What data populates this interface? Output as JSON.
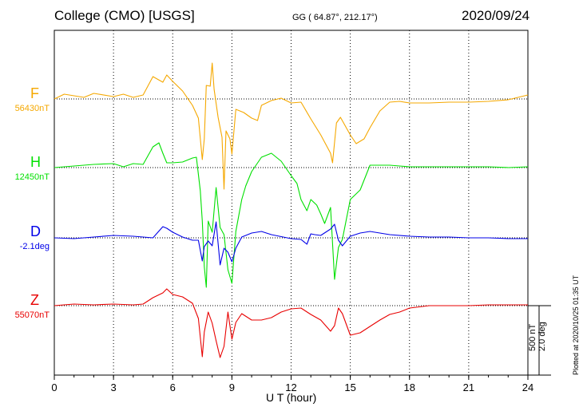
{
  "header": {
    "title": "College (CMO)  [USGS]",
    "coords": "GG ( 64.87°, 212.17°)",
    "date": "2020/09/24"
  },
  "footer": {
    "scale": "500 nT\n2.0 deg",
    "plotted": "Plotted at 2020/10/25 01:35 UT"
  },
  "chart_data": {
    "type": "line",
    "xlabel": "U T (hour)",
    "xlim": [
      0,
      24
    ],
    "xticks": [
      0,
      3,
      6,
      9,
      12,
      15,
      18,
      21,
      24
    ],
    "grid": true,
    "scale_bar": {
      "nT": 500,
      "deg": 2.0
    },
    "channels": [
      {
        "name": "F",
        "baseline": "56430nT",
        "color": "#f5a800",
        "points": [
          [
            0,
            0
          ],
          [
            0.5,
            6
          ],
          [
            1.5,
            2
          ],
          [
            2,
            7
          ],
          [
            3,
            3
          ],
          [
            3.5,
            6
          ],
          [
            4,
            2
          ],
          [
            4.5,
            5
          ],
          [
            5,
            28
          ],
          [
            5.5,
            21
          ],
          [
            5.7,
            30
          ],
          [
            6,
            22
          ],
          [
            6.5,
            10
          ],
          [
            7,
            -8
          ],
          [
            7.3,
            -24
          ],
          [
            7.5,
            -76
          ],
          [
            7.6,
            -50
          ],
          [
            7.7,
            17
          ],
          [
            7.9,
            16
          ],
          [
            8,
            45
          ],
          [
            8.1,
            12
          ],
          [
            8.3,
            -23
          ],
          [
            8.5,
            -48
          ],
          [
            8.6,
            -113
          ],
          [
            8.7,
            -40
          ],
          [
            8.9,
            -50
          ],
          [
            9,
            -69
          ],
          [
            9.2,
            -13
          ],
          [
            9.4,
            -15
          ],
          [
            9.6,
            -17
          ],
          [
            10,
            -24
          ],
          [
            10.3,
            -27
          ],
          [
            10.5,
            -8
          ],
          [
            11,
            -2
          ],
          [
            11.5,
            1
          ],
          [
            12,
            -5
          ],
          [
            12.5,
            -4
          ],
          [
            13,
            -25
          ],
          [
            13.5,
            -45
          ],
          [
            14,
            -68
          ],
          [
            14.1,
            -80
          ],
          [
            14.3,
            -30
          ],
          [
            14.5,
            -23
          ],
          [
            15,
            -45
          ],
          [
            15.3,
            -56
          ],
          [
            15.7,
            -50
          ],
          [
            16,
            -36
          ],
          [
            16.5,
            -15
          ],
          [
            17,
            -4
          ],
          [
            17.5,
            -3
          ],
          [
            18,
            -5
          ],
          [
            19,
            -5
          ],
          [
            20,
            -4
          ],
          [
            21,
            -4
          ],
          [
            22,
            -3
          ],
          [
            23,
            -1
          ],
          [
            24,
            5
          ]
        ]
      },
      {
        "name": "H",
        "baseline": "12450nT",
        "color": "#00e000",
        "points": [
          [
            0,
            0
          ],
          [
            1,
            2
          ],
          [
            2,
            4
          ],
          [
            3,
            5
          ],
          [
            3.5,
            1
          ],
          [
            4,
            5
          ],
          [
            4.5,
            4
          ],
          [
            5,
            26
          ],
          [
            5.3,
            31
          ],
          [
            5.5,
            18
          ],
          [
            5.7,
            6
          ],
          [
            6,
            6
          ],
          [
            6.5,
            7
          ],
          [
            7,
            12
          ],
          [
            7.2,
            13
          ],
          [
            7.4,
            -29
          ],
          [
            7.5,
            -67
          ],
          [
            7.6,
            -124
          ],
          [
            7.7,
            -150
          ],
          [
            7.8,
            -67
          ],
          [
            8,
            -81
          ],
          [
            8.2,
            -25
          ],
          [
            8.4,
            -75
          ],
          [
            8.6,
            -84
          ],
          [
            8.8,
            -128
          ],
          [
            9,
            -145
          ],
          [
            9.2,
            -80
          ],
          [
            9.5,
            -40
          ],
          [
            9.7,
            -23
          ],
          [
            10,
            -5
          ],
          [
            10.5,
            13
          ],
          [
            11,
            18
          ],
          [
            11.5,
            8
          ],
          [
            12,
            -10
          ],
          [
            12.3,
            -20
          ],
          [
            12.5,
            -40
          ],
          [
            12.8,
            -54
          ],
          [
            13,
            -40
          ],
          [
            13.3,
            -47
          ],
          [
            13.5,
            -58
          ],
          [
            13.7,
            -70
          ],
          [
            14,
            -50
          ],
          [
            14.2,
            -140
          ],
          [
            14.4,
            -100
          ],
          [
            14.6,
            -90
          ],
          [
            15,
            -40
          ],
          [
            15.5,
            -28
          ],
          [
            16,
            3
          ],
          [
            16.5,
            3
          ],
          [
            17,
            3
          ],
          [
            17.5,
            2
          ],
          [
            18,
            1
          ],
          [
            19,
            1
          ],
          [
            20,
            1
          ],
          [
            21,
            1
          ],
          [
            22,
            1
          ],
          [
            23,
            0
          ],
          [
            24,
            1
          ]
        ]
      },
      {
        "name": "D",
        "baseline": "-2.1deg",
        "color": "#0000e8",
        "points": [
          [
            0,
            0
          ],
          [
            1,
            -1
          ],
          [
            2,
            1
          ],
          [
            3,
            3
          ],
          [
            4,
            2
          ],
          [
            5,
            0
          ],
          [
            5.5,
            14
          ],
          [
            5.7,
            12
          ],
          [
            6,
            7
          ],
          [
            6.5,
            1
          ],
          [
            7,
            -3
          ],
          [
            7.3,
            -3
          ],
          [
            7.5,
            -29
          ],
          [
            7.6,
            -11
          ],
          [
            7.8,
            -4
          ],
          [
            8,
            -10
          ],
          [
            8.2,
            20
          ],
          [
            8.4,
            -34
          ],
          [
            8.6,
            -13
          ],
          [
            8.8,
            -18
          ],
          [
            9,
            -30
          ],
          [
            9.2,
            -13
          ],
          [
            9.5,
            1
          ],
          [
            10,
            6
          ],
          [
            10.5,
            8
          ],
          [
            11,
            4
          ],
          [
            12,
            -1
          ],
          [
            12.5,
            -2
          ],
          [
            12.8,
            -8
          ],
          [
            13,
            5
          ],
          [
            13.2,
            4
          ],
          [
            13.5,
            3
          ],
          [
            14,
            11
          ],
          [
            14.2,
            17
          ],
          [
            14.4,
            -3
          ],
          [
            14.6,
            -10
          ],
          [
            15,
            2
          ],
          [
            15.5,
            6
          ],
          [
            16,
            8
          ],
          [
            17,
            4
          ],
          [
            18,
            2
          ],
          [
            19,
            1
          ],
          [
            20,
            1
          ],
          [
            21,
            0
          ],
          [
            22,
            0
          ],
          [
            23,
            -1
          ],
          [
            24,
            -1
          ]
        ]
      },
      {
        "name": "Z",
        "baseline": "55070nT",
        "color": "#e80000",
        "points": [
          [
            0,
            0
          ],
          [
            1,
            2
          ],
          [
            2,
            1
          ],
          [
            3,
            2
          ],
          [
            4,
            1
          ],
          [
            4.5,
            2
          ],
          [
            5,
            10
          ],
          [
            5.5,
            16
          ],
          [
            5.7,
            21
          ],
          [
            6,
            14
          ],
          [
            6.5,
            11
          ],
          [
            7,
            3
          ],
          [
            7.3,
            -16
          ],
          [
            7.5,
            -64
          ],
          [
            7.6,
            -33
          ],
          [
            7.8,
            -8
          ],
          [
            8,
            -22
          ],
          [
            8.2,
            -44
          ],
          [
            8.4,
            -65
          ],
          [
            8.6,
            -51
          ],
          [
            8.8,
            -8
          ],
          [
            9,
            -42
          ],
          [
            9.2,
            -21
          ],
          [
            9.5,
            -10
          ],
          [
            10,
            -18
          ],
          [
            10.5,
            -18
          ],
          [
            11,
            -15
          ],
          [
            11.5,
            -8
          ],
          [
            12,
            -4
          ],
          [
            12.5,
            -3
          ],
          [
            13,
            -11
          ],
          [
            13.5,
            -18
          ],
          [
            14,
            -32
          ],
          [
            14.2,
            -25
          ],
          [
            14.4,
            -3
          ],
          [
            14.6,
            -10
          ],
          [
            15,
            -37
          ],
          [
            15.5,
            -34
          ],
          [
            16,
            -26
          ],
          [
            16.5,
            -18
          ],
          [
            17,
            -11
          ],
          [
            17.5,
            -8
          ],
          [
            18,
            -3
          ],
          [
            19,
            0
          ],
          [
            20,
            0
          ],
          [
            21,
            0
          ],
          [
            22,
            1
          ],
          [
            23,
            1
          ],
          [
            24,
            1
          ]
        ]
      }
    ]
  }
}
